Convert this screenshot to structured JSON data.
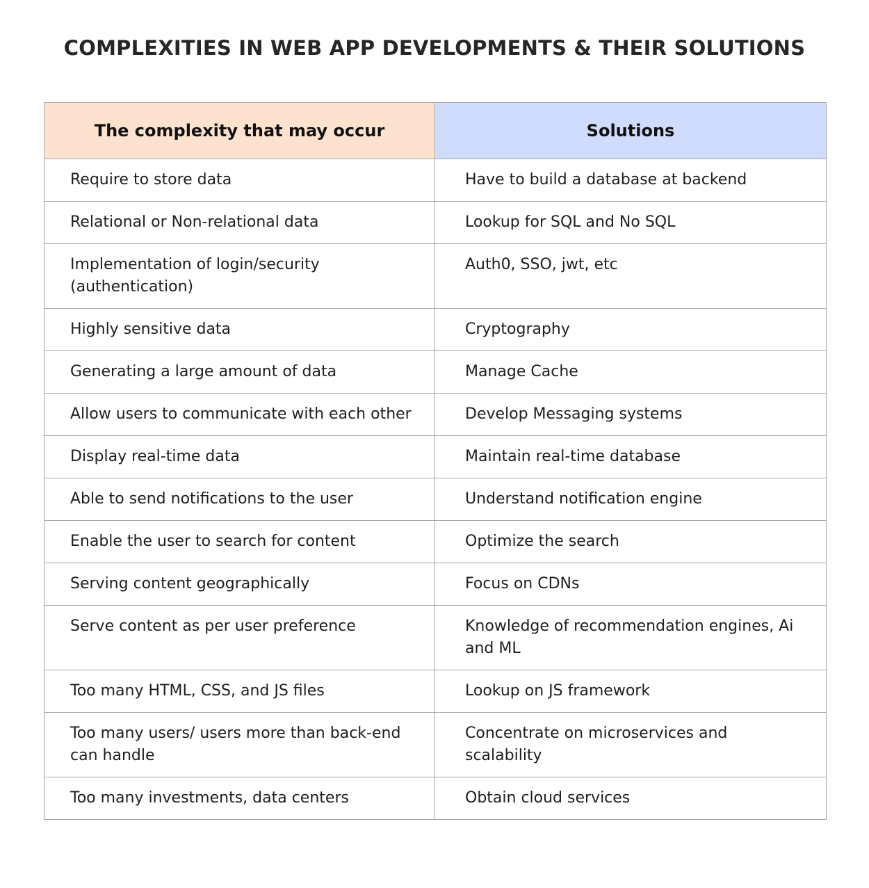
{
  "title": "COMPLEXITIES IN WEB APP DEVELOPMENTS & THEIR SOLUTIONS",
  "table": {
    "header": [
      "The complexity that may occur",
      "Solutions"
    ],
    "rows": [
      [
        "Require to store data",
        "Have to build a database at backend"
      ],
      [
        "Relational or  Non-relational data",
        "Lookup for SQL and No SQL"
      ],
      [
        "Implementation of login/security (authentication)",
        "Auth0, SSO, jwt, etc"
      ],
      [
        "Highly sensitive data",
        "Cryptography"
      ],
      [
        "Generating a large amount of data",
        "Manage Cache"
      ],
      [
        "Allow users to communicate with each other",
        "Develop Messaging systems"
      ],
      [
        "Display real-time data",
        "Maintain real-time database"
      ],
      [
        "Able to send notifications to the user",
        "Understand notification engine"
      ],
      [
        "Enable the user to search for content",
        "Optimize the search"
      ],
      [
        "Serving content geographically",
        "Focus on CDNs"
      ],
      [
        "Serve content as per user preference",
        "Knowledge of recommendation engines, Ai and ML"
      ],
      [
        "Too many HTML, CSS, and JS files",
        "Lookup on JS framework"
      ],
      [
        "Too many users/ users more than back-end can handle",
        "Concentrate on microservices and scalability"
      ],
      [
        "Too many investments, data centers",
        "Obtain cloud services"
      ]
    ]
  }
}
